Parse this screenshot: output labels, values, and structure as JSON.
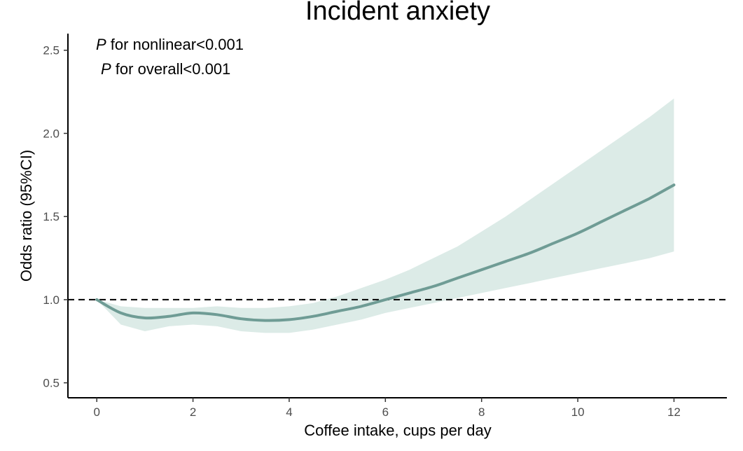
{
  "chart_data": {
    "type": "line",
    "title": "Incident anxiety",
    "xlabel": "Coffee intake, cups per day",
    "ylabel": "Odds ratio (95%CI)",
    "xlim": [
      -0.6,
      13.1
    ],
    "ylim": [
      0.41,
      2.6
    ],
    "xticks": [
      0,
      2,
      4,
      6,
      8,
      10,
      12
    ],
    "yticks": [
      0.5,
      1.0,
      1.5,
      2.0,
      2.5
    ],
    "ytick_labels": [
      "0.5",
      "1.0",
      "1.5",
      "2.0",
      "2.5"
    ],
    "reference_line": 1.0,
    "annotations": [
      {
        "italic": "P",
        "rest": " for nonlinear<0.001"
      },
      {
        "italic": "P",
        "rest": " for overall<0.001"
      }
    ],
    "colors": {
      "line": "#6f9c95",
      "band": "#dcebe7",
      "reference": "#000000"
    },
    "series": [
      {
        "x": [
          0,
          0.5,
          1,
          1.5,
          2,
          2.5,
          3,
          3.5,
          4,
          4.5,
          5,
          5.5,
          6,
          6.5,
          7,
          7.5,
          8,
          8.5,
          9,
          9.5,
          10,
          10.5,
          11,
          11.5,
          12
        ],
        "y": [
          1.0,
          0.92,
          0.89,
          0.9,
          0.92,
          0.91,
          0.885,
          0.875,
          0.88,
          0.9,
          0.93,
          0.96,
          1.0,
          1.04,
          1.08,
          1.13,
          1.18,
          1.23,
          1.28,
          1.34,
          1.4,
          1.47,
          1.54,
          1.61,
          1.69
        ],
        "lower": [
          1.0,
          0.85,
          0.81,
          0.84,
          0.85,
          0.84,
          0.81,
          0.8,
          0.8,
          0.82,
          0.85,
          0.88,
          0.92,
          0.95,
          0.98,
          1.01,
          1.04,
          1.07,
          1.1,
          1.13,
          1.16,
          1.19,
          1.22,
          1.25,
          1.29
        ],
        "upper": [
          1.0,
          0.96,
          0.95,
          0.95,
          0.95,
          0.96,
          0.95,
          0.95,
          0.96,
          0.98,
          1.02,
          1.07,
          1.12,
          1.18,
          1.25,
          1.32,
          1.41,
          1.5,
          1.6,
          1.7,
          1.8,
          1.9,
          2.0,
          2.1,
          2.21
        ]
      }
    ]
  }
}
